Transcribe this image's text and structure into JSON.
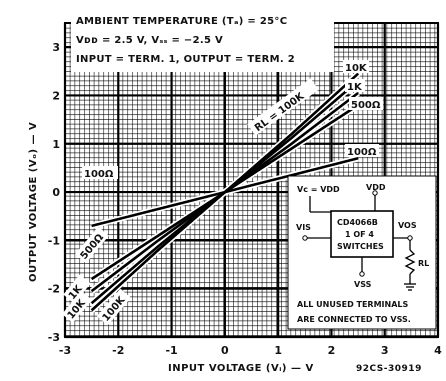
{
  "chart_data": {
    "type": "line",
    "xlabel": "INPUT VOLTAGE (Vᵢ) — V",
    "ylabel": "OUTPUT VOLTAGE (Vₒ) — V",
    "xlim": [
      -3,
      4
    ],
    "ylim": [
      -3,
      3.5
    ],
    "x_ticks": [
      "-3",
      "-2",
      "-1",
      "0",
      "1",
      "2",
      "3",
      "4"
    ],
    "y_ticks": [
      "3",
      "2",
      "1",
      "0",
      "-1",
      "-2",
      "-3"
    ],
    "grid": true,
    "conditions": [
      "AMBIENT TEMPERATURE (Tₐ) = 25°C",
      "Vᴅᴅ = 2.5 V, Vₛₛ = −2.5 V",
      "INPUT = TERM. 1, OUTPUT = TERM. 2"
    ],
    "series": [
      {
        "name": "100K",
        "x": [
          -2.5,
          -1.25,
          0,
          1.25,
          2.5
        ],
        "y": [
          -2.45,
          -1.2,
          0.0,
          1.2,
          2.45
        ]
      },
      {
        "name": "10K",
        "x": [
          -2.5,
          -1.25,
          0,
          1.25,
          2.5
        ],
        "y": [
          -2.3,
          -1.12,
          0.0,
          1.12,
          2.3
        ]
      },
      {
        "name": "1K",
        "x": [
          -2.5,
          -1.25,
          0,
          1.25,
          2.5
        ],
        "y": [
          -2.05,
          -1.0,
          0.0,
          1.0,
          2.05
        ]
      },
      {
        "name": "500Ω",
        "x": [
          -2.5,
          -1.25,
          0,
          1.25,
          2.5
        ],
        "y": [
          -1.8,
          -0.9,
          0.0,
          0.9,
          1.8
        ]
      },
      {
        "name": "100Ω",
        "x": [
          -2.5,
          -1.25,
          0,
          1.25,
          2.5
        ],
        "y": [
          -0.7,
          -0.35,
          0.0,
          0.35,
          0.7
        ]
      }
    ],
    "curve_labels": {
      "rl": "RL = 100K",
      "r100k": "100K",
      "r10k": "10K",
      "r1k": "1K",
      "r500": "500Ω",
      "r100": "100Ω"
    },
    "inset": {
      "chip": "CD4066B",
      "chip_sub1": "1 OF 4",
      "chip_sub2": "SWITCHES",
      "vc": "Vc = VDD",
      "vdd": "VDD",
      "vss": "VSS",
      "vis": "VIS",
      "vos": "VOS",
      "rl": "RL",
      "note1": "ALL UNUSED TERMINALS",
      "note2": "ARE CONNECTED TO VSS."
    },
    "figure_code": "92CS-30919"
  }
}
